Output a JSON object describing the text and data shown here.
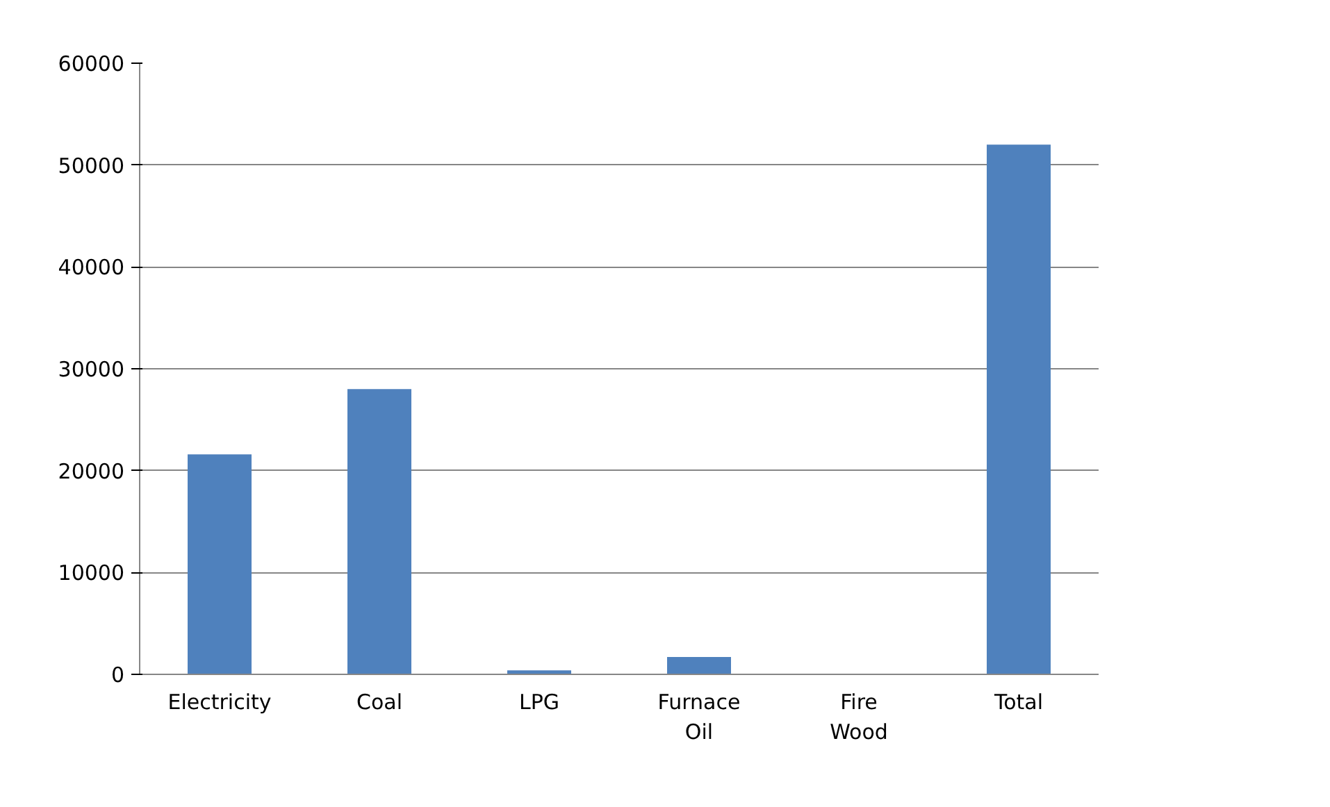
{
  "chart_data": {
    "type": "bar",
    "categories": [
      "Electricity",
      "Coal",
      "LPG",
      "Furnace Oil",
      "Fire Wood",
      "Total"
    ],
    "values": [
      21600,
      28000,
      400,
      1700,
      0,
      52000
    ],
    "color": "#4f81bd",
    "ylim": [
      0,
      60000
    ],
    "yticks": [
      0,
      10000,
      20000,
      30000,
      40000,
      50000,
      60000
    ],
    "grid": "y"
  }
}
